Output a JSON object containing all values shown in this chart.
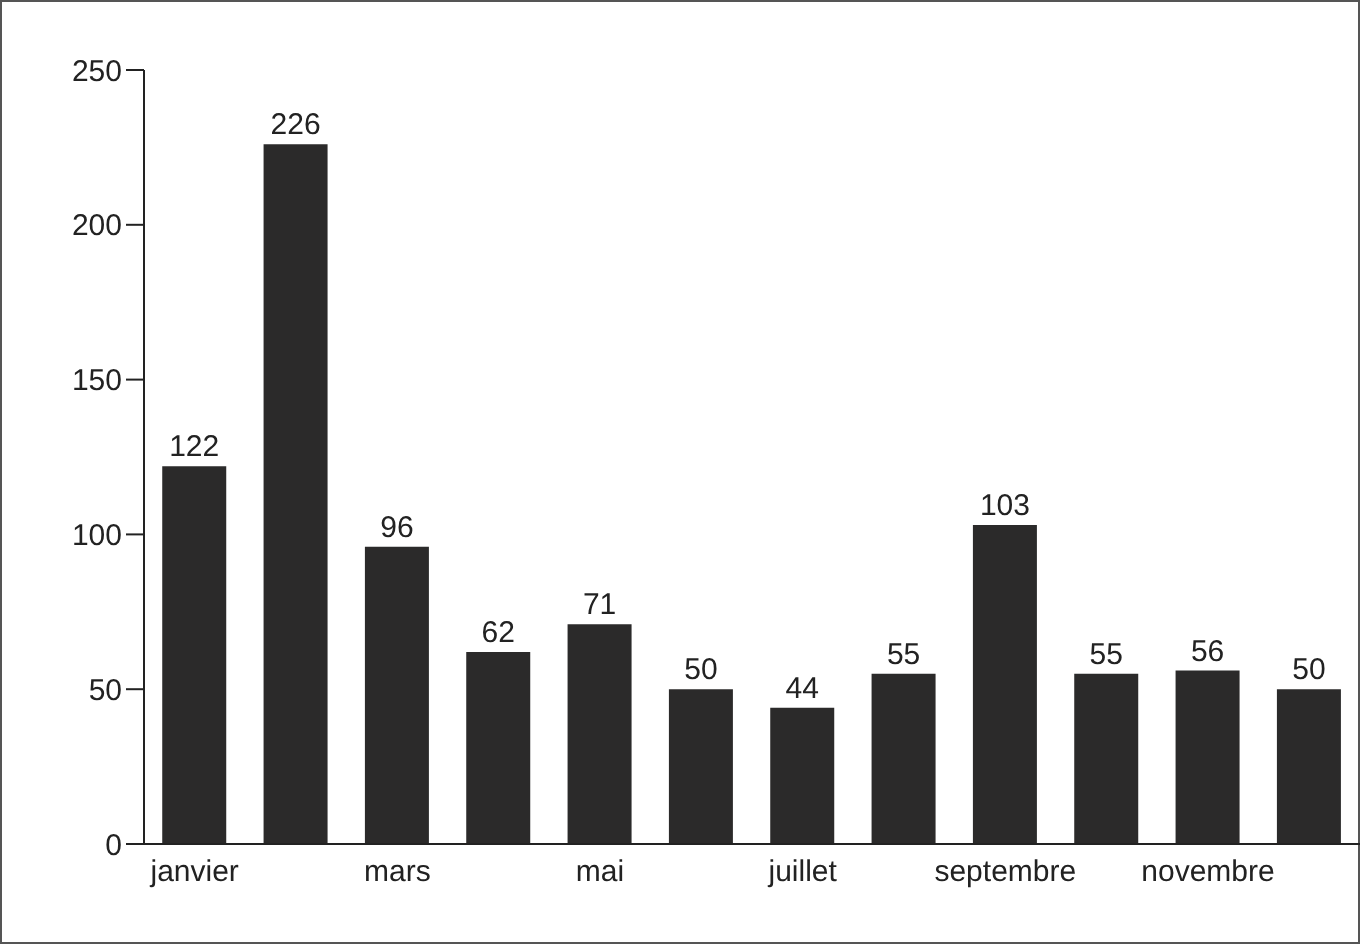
{
  "chart_data": {
    "type": "bar",
    "categories": [
      "janvier",
      null,
      "mars",
      null,
      "mai",
      null,
      "juillet",
      null,
      "septembre",
      null,
      "novembre",
      null
    ],
    "values": [
      122,
      226,
      96,
      62,
      71,
      50,
      44,
      55,
      103,
      55,
      56,
      50
    ],
    "color": "#2b2a2a",
    "ylim": [
      0,
      250
    ],
    "yticks": [
      0,
      50,
      100,
      150,
      200,
      250
    ],
    "data_labels": true,
    "grid": false,
    "legend": false
  }
}
